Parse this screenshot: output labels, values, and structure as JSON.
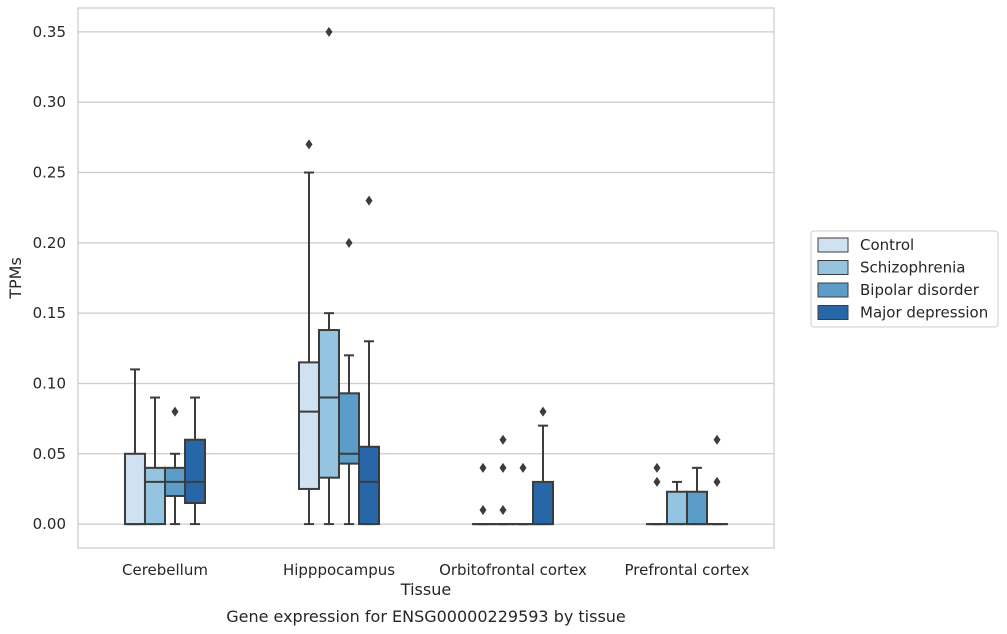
{
  "chart_data": {
    "type": "box",
    "xlabel": "Tissue",
    "ylabel": "TPMs",
    "caption": "Gene expression for ENSG00000229593 by tissue",
    "ylim": [
      -0.017,
      0.367
    ],
    "yticks": [
      "0.00",
      "0.05",
      "0.10",
      "0.15",
      "0.20",
      "0.25",
      "0.30",
      "0.35"
    ],
    "categories": [
      "Cerebellum",
      "Hipppocampus",
      "Orbitofrontal cortex",
      "Prefrontal cortex"
    ],
    "grid": "horizontal",
    "legend_position": "right",
    "series": [
      {
        "name": "Control",
        "color": "#d0e1f2",
        "boxes": [
          {
            "whislo": 0.0,
            "q1": 0.0,
            "med": 0.0,
            "q3": 0.05,
            "whishi": 0.11,
            "fliers": []
          },
          {
            "whislo": 0.0,
            "q1": 0.025,
            "med": 0.08,
            "q3": 0.115,
            "whishi": 0.25,
            "fliers": [
              0.27
            ]
          },
          {
            "whislo": 0.0,
            "q1": 0.0,
            "med": 0.0,
            "q3": 0.0,
            "whishi": 0.0,
            "fliers": [
              0.01,
              0.04
            ]
          },
          {
            "whislo": 0.0,
            "q1": 0.0,
            "med": 0.0,
            "q3": 0.0,
            "whishi": 0.0,
            "fliers": [
              0.03,
              0.04
            ]
          }
        ]
      },
      {
        "name": "Schizophrenia",
        "color": "#94c4df",
        "boxes": [
          {
            "whislo": 0.0,
            "q1": 0.0,
            "med": 0.03,
            "q3": 0.04,
            "whishi": 0.09,
            "fliers": []
          },
          {
            "whislo": 0.0,
            "q1": 0.033,
            "med": 0.09,
            "q3": 0.138,
            "whishi": 0.15,
            "fliers": [
              0.35
            ]
          },
          {
            "whislo": 0.0,
            "q1": 0.0,
            "med": 0.0,
            "q3": 0.0,
            "whishi": 0.0,
            "fliers": [
              0.01,
              0.04,
              0.06
            ]
          },
          {
            "whislo": 0.0,
            "q1": 0.0,
            "med": 0.0,
            "q3": 0.023,
            "whishi": 0.03,
            "fliers": []
          }
        ]
      },
      {
        "name": "Bipolar disorder",
        "color": "#5b9cc9",
        "boxes": [
          {
            "whislo": 0.0,
            "q1": 0.02,
            "med": 0.03,
            "q3": 0.04,
            "whishi": 0.05,
            "fliers": [
              0.08
            ]
          },
          {
            "whislo": 0.0,
            "q1": 0.043,
            "med": 0.05,
            "q3": 0.093,
            "whishi": 0.12,
            "fliers": [
              0.2
            ]
          },
          {
            "whislo": 0.0,
            "q1": 0.0,
            "med": 0.0,
            "q3": 0.0,
            "whishi": 0.0,
            "fliers": [
              0.04
            ]
          },
          {
            "whislo": 0.0,
            "q1": 0.0,
            "med": 0.0,
            "q3": 0.023,
            "whishi": 0.04,
            "fliers": []
          }
        ]
      },
      {
        "name": "Major depression",
        "color": "#2767a8",
        "boxes": [
          {
            "whislo": 0.0,
            "q1": 0.015,
            "med": 0.03,
            "q3": 0.06,
            "whishi": 0.09,
            "fliers": []
          },
          {
            "whislo": 0.0,
            "q1": 0.0,
            "med": 0.03,
            "q3": 0.055,
            "whishi": 0.13,
            "fliers": [
              0.23
            ]
          },
          {
            "whislo": 0.0,
            "q1": 0.0,
            "med": 0.0,
            "q3": 0.03,
            "whishi": 0.07,
            "fliers": [
              0.08
            ]
          },
          {
            "whislo": 0.0,
            "q1": 0.0,
            "med": 0.0,
            "q3": 0.0,
            "whishi": 0.0,
            "fliers": [
              0.03,
              0.06
            ]
          }
        ]
      }
    ]
  }
}
